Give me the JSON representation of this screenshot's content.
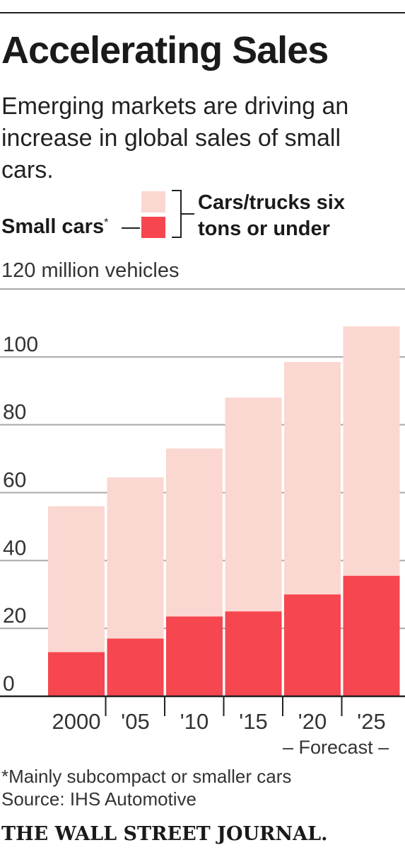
{
  "title": "Accelerating Sales",
  "subtitle": "Emerging markets are driving an increase in global sales of small cars.",
  "legend": {
    "small_label": "Small cars",
    "small_marker": "*",
    "total_label_line1": "Cars/trucks six",
    "total_label_line2": "tons or under"
  },
  "unit_label": "120 million vehicles",
  "forecast_label": "Forecast",
  "footnote": "*Mainly subcompact or smaller cars",
  "source": "Source: IHS Automotive",
  "masthead": "THE WALL STREET JOURNAL.",
  "colors": {
    "small_cars": "#f6464f",
    "total": "#fbd7d1",
    "gridline": "#a9a9a9",
    "axis": "#222222"
  },
  "chart_data": {
    "type": "bar",
    "stacked": "overlay",
    "categories": [
      "2000",
      "'05",
      "'10",
      "'15",
      "'20",
      "'25"
    ],
    "series": [
      {
        "name": "Small cars",
        "values": [
          13,
          17,
          23.5,
          25,
          30,
          35.5
        ]
      },
      {
        "name": "Cars/trucks six tons or under",
        "values": [
          56,
          64.5,
          73,
          88,
          98.5,
          109
        ]
      }
    ],
    "ylim": [
      0,
      120
    ],
    "yticks": [
      0,
      20,
      40,
      60,
      80,
      100
    ],
    "ylabel": "120 million vehicles",
    "grid": true,
    "forecast_categories": [
      "'20",
      "'25"
    ]
  }
}
